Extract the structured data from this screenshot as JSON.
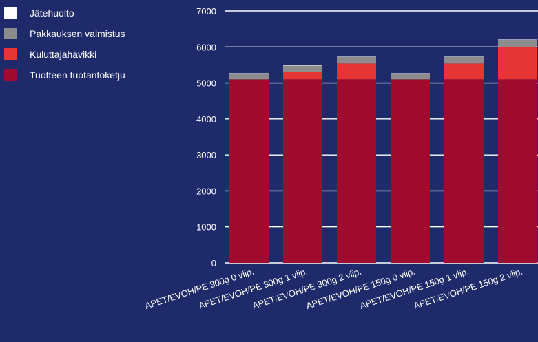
{
  "chart_data": {
    "type": "bar",
    "stacked": true,
    "categories": [
      "APET/EVOH/PE 300g 0 viip.",
      "APET/EVOH/PE 300g 1 viip.",
      "APET/EVOH/PE 300g 2 viip.",
      "APET/EVOH/PE 150g 0 viip.",
      "APET/EVOH/PE 150g 1 viip.",
      "APET/EVOH/PE 150g 2 viip."
    ],
    "series": [
      {
        "name": "Tuotteen tuotantoketju",
        "color": "#9e0b2f",
        "values": [
          5100,
          5100,
          5100,
          5100,
          5100,
          5100
        ]
      },
      {
        "name": "Kuluttajahävikki",
        "color": "#e53535",
        "values": [
          0,
          210,
          440,
          0,
          440,
          910
        ]
      },
      {
        "name": "Pakkauksen valmistus",
        "color": "#8c8c8c",
        "values": [
          160,
          170,
          180,
          160,
          180,
          190
        ]
      },
      {
        "name": "Jätehuolto",
        "color": "#ffffff",
        "values": [
          10,
          10,
          10,
          10,
          10,
          10
        ]
      }
    ],
    "legend_order": [
      "Jätehuolto",
      "Pakkauksen valmistus",
      "Kuluttajahävikki",
      "Tuotteen tuotantoketju"
    ],
    "yticks": [
      "0",
      "1000",
      "2000",
      "3000",
      "4000",
      "5000",
      "6000",
      "7000"
    ],
    "ylim": [
      0,
      7000
    ],
    "grid": true,
    "legend_position": "top-left",
    "background": "#1f2a6b"
  }
}
